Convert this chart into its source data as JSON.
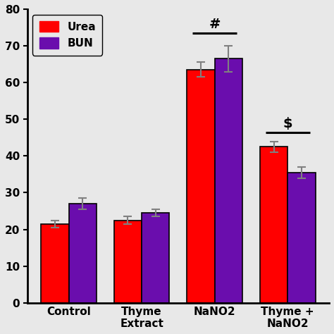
{
  "categories": [
    "Control",
    "Thyme\nExtract",
    "NaNO2",
    "Thyme +\nNaNO2"
  ],
  "urea_values": [
    21.5,
    22.5,
    63.5,
    42.5
  ],
  "urea_errors": [
    1.0,
    1.0,
    2.0,
    1.5
  ],
  "bun_values": [
    27.0,
    24.5,
    66.5,
    35.5
  ],
  "bun_errors": [
    1.5,
    1.0,
    3.5,
    1.5
  ],
  "urea_color": "#ff0000",
  "bun_color": "#6a0dad",
  "bar_width": 0.38,
  "ylim": [
    0,
    80
  ],
  "yticks": [
    0,
    10,
    20,
    30,
    40,
    50,
    60,
    70,
    80
  ],
  "legend_labels": [
    "Urea",
    "BUN"
  ],
  "background_color": "#e8e8e8",
  "edgecolor": "black"
}
